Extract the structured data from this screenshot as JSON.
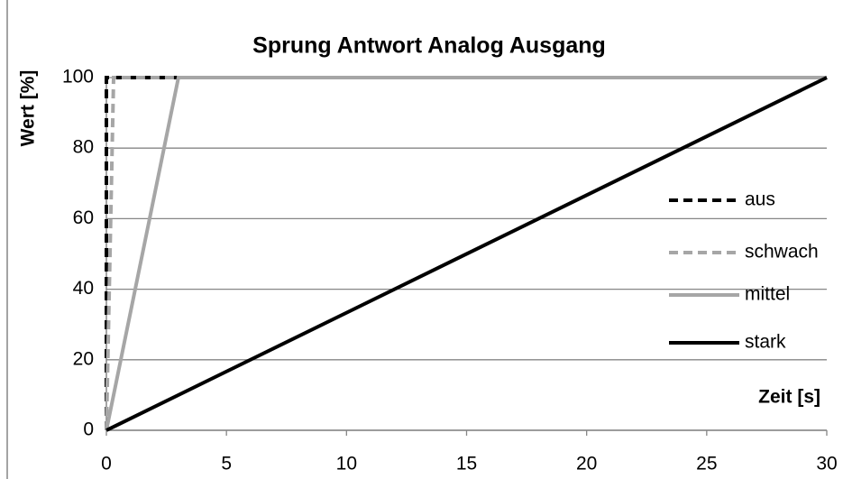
{
  "chart_data": {
    "type": "line",
    "title": "Sprung Antwort Analog Ausgang",
    "y_label": "Wert [%]",
    "x_label": "Zeit [s]",
    "xlim": [
      0,
      30
    ],
    "xticks": [
      0,
      5,
      10,
      15,
      20,
      25,
      30
    ],
    "ylim": [
      0,
      100
    ],
    "yticks": [
      0,
      20,
      40,
      60,
      80,
      100
    ],
    "grid": true,
    "legend": "right",
    "series": [
      {
        "name": "aus",
        "color": "#000000",
        "dashed": true,
        "x": [
          0,
          0,
          30
        ],
        "values": [
          0,
          100,
          100
        ]
      },
      {
        "name": "schwach",
        "color": "#a6a6a6",
        "dashed": true,
        "x": [
          0,
          0.3,
          30
        ],
        "values": [
          0,
          100,
          100
        ]
      },
      {
        "name": "mittel",
        "color": "#a6a6a6",
        "dashed": false,
        "x": [
          0,
          3,
          30
        ],
        "values": [
          0,
          100,
          100
        ]
      },
      {
        "name": "stark",
        "color": "#000000",
        "dashed": false,
        "x": [
          0,
          30
        ],
        "values": [
          0,
          100
        ]
      }
    ]
  }
}
